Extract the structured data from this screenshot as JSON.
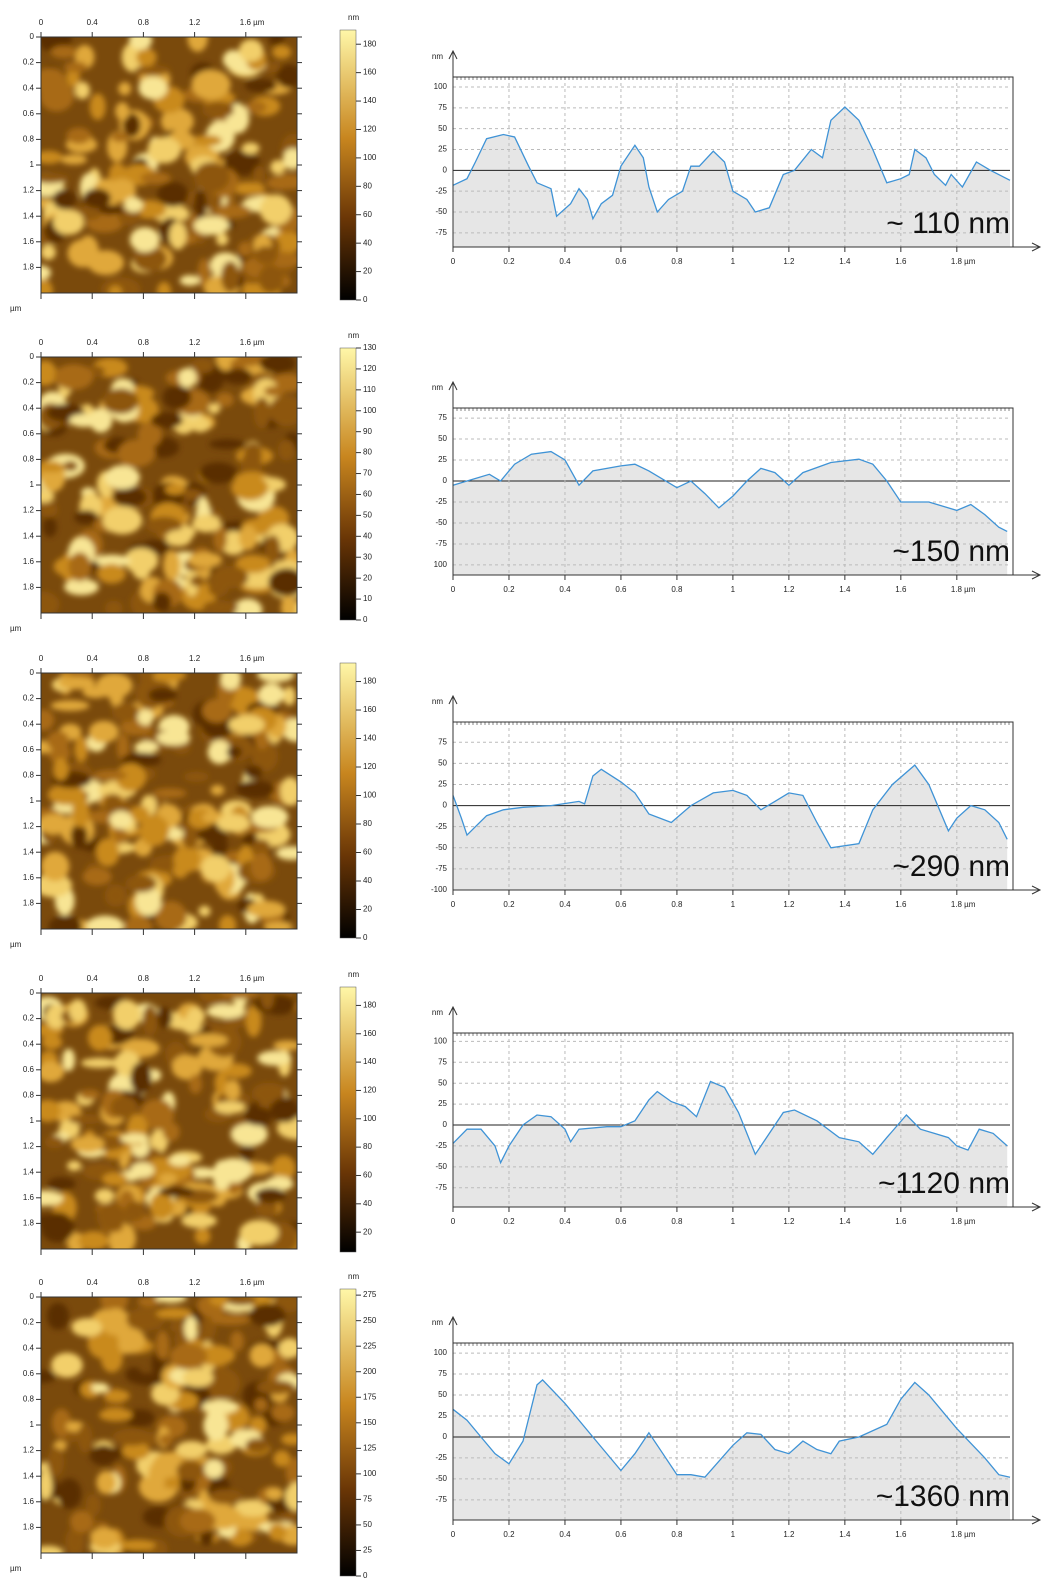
{
  "chart_data": [
    {
      "type": "image",
      "xlim": [
        0,
        2
      ],
      "ylim": [
        0,
        2
      ],
      "xticks": [
        0,
        0.4,
        0.8,
        1.2,
        {
          "value": 1.6,
          "label": "1.6 µm"
        }
      ],
      "yticks": [
        0,
        0.2,
        0.4,
        0.6,
        0.8,
        1,
        1.2,
        1.4,
        1.6,
        1.8
      ],
      "ylabel": "µm",
      "colorbar": {
        "label": "nm",
        "lim": [
          0,
          190
        ],
        "ticks": [
          0,
          20,
          40,
          60,
          80,
          100,
          120,
          140,
          160,
          180
        ]
      }
    },
    {
      "type": "line",
      "xlim": [
        0,
        1.99
      ],
      "ylim": [
        -92,
        112
      ],
      "xticks": [
        0,
        0.2,
        0.4,
        0.6,
        0.8,
        1,
        1.2,
        1.4,
        1.6,
        {
          "value": 1.8,
          "label": "1.8 µm"
        }
      ],
      "yticks": [
        100,
        75,
        50,
        25,
        0,
        -25,
        -50,
        -75
      ],
      "ylabel": "nm",
      "annotation": "~ 110 nm",
      "grid": true,
      "fill": "#e6e6e6",
      "x": [
        0,
        0.05,
        0.08,
        0.12,
        0.18,
        0.22,
        0.27,
        0.3,
        0.35,
        0.37,
        0.42,
        0.45,
        0.48,
        0.5,
        0.53,
        0.57,
        0.6,
        0.65,
        0.68,
        0.7,
        0.73,
        0.77,
        0.82,
        0.85,
        0.88,
        0.93,
        0.97,
        1.0,
        1.05,
        1.08,
        1.13,
        1.18,
        1.22,
        1.28,
        1.32,
        1.35,
        1.4,
        1.45,
        1.5,
        1.55,
        1.6,
        1.63,
        1.65,
        1.69,
        1.72,
        1.76,
        1.78,
        1.82,
        1.87,
        1.92,
        1.99
      ],
      "series": [
        {
          "color": "#3f93d6",
          "values": [
            -18,
            -10,
            10,
            38,
            43,
            40,
            5,
            -15,
            -22,
            -55,
            -40,
            -22,
            -35,
            -58,
            -40,
            -30,
            5,
            30,
            15,
            -20,
            -50,
            -35,
            -25,
            5,
            5,
            23,
            10,
            -25,
            -35,
            -50,
            -45,
            -5,
            0,
            25,
            15,
            60,
            76,
            60,
            25,
            -15,
            -10,
            -5,
            25,
            15,
            -5,
            -18,
            -5,
            -20,
            10,
            0,
            -12
          ]
        }
      ]
    },
    {
      "type": "image",
      "xlim": [
        0,
        2
      ],
      "ylim": [
        0,
        2
      ],
      "xticks": [
        0,
        0.4,
        0.8,
        1.2,
        {
          "value": 1.6,
          "label": "1.6 µm"
        }
      ],
      "yticks": [
        0,
        0.2,
        0.4,
        0.6,
        0.8,
        1,
        1.2,
        1.4,
        1.6,
        1.8
      ],
      "ylabel": "µm",
      "colorbar": {
        "label": "nm",
        "lim": [
          0,
          130
        ],
        "ticks": [
          0,
          10,
          20,
          30,
          40,
          50,
          60,
          70,
          80,
          90,
          100,
          110,
          120,
          130
        ]
      }
    },
    {
      "type": "line",
      "xlim": [
        0,
        1.99
      ],
      "ylim": [
        -112,
        87
      ],
      "xticks": [
        0,
        0.2,
        0.4,
        0.6,
        0.8,
        1,
        1.2,
        1.4,
        1.6,
        {
          "value": 1.8,
          "label": "1.8 µm"
        }
      ],
      "yticks": [
        75,
        50,
        25,
        0,
        -25,
        -50,
        -75,
        {
          "value": -100,
          "label": "100"
        }
      ],
      "ylabel": "nm",
      "annotation": "~150 nm",
      "grid": true,
      "fill": "#e6e6e6",
      "x": [
        0,
        0.05,
        0.13,
        0.17,
        0.22,
        0.28,
        0.35,
        0.4,
        0.45,
        0.5,
        0.6,
        0.65,
        0.7,
        0.8,
        0.85,
        0.9,
        0.95,
        1.0,
        1.05,
        1.1,
        1.15,
        1.2,
        1.25,
        1.35,
        1.45,
        1.5,
        1.55,
        1.6,
        1.7,
        1.8,
        1.85,
        1.9,
        1.95,
        1.98
      ],
      "series": [
        {
          "color": "#3f93d6",
          "values": [
            -5,
            0,
            8,
            0,
            20,
            32,
            35,
            25,
            -5,
            12,
            18,
            20,
            12,
            -8,
            0,
            -15,
            -32,
            -18,
            0,
            15,
            10,
            -5,
            10,
            22,
            26,
            20,
            0,
            -25,
            -25,
            -35,
            -28,
            -40,
            -55,
            -60
          ]
        }
      ]
    },
    {
      "type": "image",
      "xlim": [
        0,
        2
      ],
      "ylim": [
        0,
        2
      ],
      "xticks": [
        0,
        0.4,
        0.8,
        1.2,
        {
          "value": 1.6,
          "label": "1.6 µm"
        }
      ],
      "yticks": [
        0,
        0.2,
        0.4,
        0.6,
        0.8,
        1,
        1.2,
        1.4,
        1.6,
        1.8
      ],
      "ylabel": "µm",
      "colorbar": {
        "lim": [
          0,
          193
        ],
        "ticks": [
          0,
          20,
          40,
          60,
          80,
          100,
          120,
          140,
          160,
          180
        ]
      }
    },
    {
      "type": "line",
      "xlim": [
        0,
        1.99
      ],
      "ylim": [
        -100,
        99
      ],
      "xticks": [
        0,
        0.2,
        0.4,
        0.6,
        0.8,
        1,
        1.2,
        1.4,
        1.6,
        {
          "value": 1.8,
          "label": "1.8 µm"
        }
      ],
      "yticks": [
        75,
        50,
        25,
        0,
        -25,
        -50,
        -75,
        -100
      ],
      "ylabel": "nm",
      "annotation": "~290 nm",
      "grid": true,
      "fill": "#e6e6e6",
      "x": [
        0,
        0.03,
        0.05,
        0.08,
        0.12,
        0.18,
        0.25,
        0.35,
        0.45,
        0.47,
        0.5,
        0.53,
        0.6,
        0.65,
        0.7,
        0.78,
        0.85,
        0.93,
        1.0,
        1.05,
        1.1,
        1.15,
        1.2,
        1.25,
        1.3,
        1.35,
        1.45,
        1.5,
        1.57,
        1.65,
        1.7,
        1.77,
        1.8,
        1.85,
        1.9,
        1.95,
        1.98
      ],
      "series": [
        {
          "color": "#3f93d6",
          "values": [
            12,
            -15,
            -35,
            -25,
            -12,
            -5,
            -2,
            0,
            5,
            2,
            35,
            43,
            28,
            15,
            -10,
            -20,
            0,
            15,
            18,
            12,
            -5,
            5,
            15,
            12,
            -20,
            -50,
            -45,
            -5,
            25,
            48,
            25,
            -30,
            -15,
            0,
            -5,
            -20,
            -40
          ]
        }
      ]
    },
    {
      "type": "image",
      "xlim": [
        0,
        2
      ],
      "ylim": [
        0,
        2
      ],
      "xticks": [
        0,
        0.4,
        0.8,
        1.2,
        {
          "value": 1.6,
          "label": "1.6 µm"
        }
      ],
      "yticks": [
        0,
        0.2,
        0.4,
        0.6,
        0.8,
        1,
        1.2,
        1.4,
        1.6,
        1.8
      ],
      "colorbar": {
        "label": "nm",
        "lim": [
          6,
          193
        ],
        "ticks": [
          20,
          40,
          60,
          80,
          100,
          120,
          140,
          160,
          180
        ]
      }
    },
    {
      "type": "line",
      "xlim": [
        0,
        1.99
      ],
      "ylim": [
        -98,
        110
      ],
      "xticks": [
        0,
        0.2,
        0.4,
        0.6,
        0.8,
        1,
        1.2,
        1.4,
        1.6,
        {
          "value": 1.8,
          "label": "1.8 µm"
        }
      ],
      "yticks": [
        100,
        75,
        50,
        25,
        0,
        -25,
        -50,
        -75
      ],
      "ylabel": "nm",
      "annotation": "~1120 nm",
      "grid": true,
      "fill": "#e6e6e6",
      "x": [
        0,
        0.05,
        0.1,
        0.15,
        0.17,
        0.2,
        0.25,
        0.3,
        0.35,
        0.4,
        0.42,
        0.45,
        0.55,
        0.6,
        0.65,
        0.7,
        0.73,
        0.78,
        0.83,
        0.87,
        0.92,
        0.97,
        1.02,
        1.08,
        1.12,
        1.18,
        1.22,
        1.3,
        1.38,
        1.45,
        1.5,
        1.55,
        1.62,
        1.67,
        1.72,
        1.77,
        1.8,
        1.84,
        1.88,
        1.93,
        1.98
      ],
      "series": [
        {
          "color": "#3f93d6",
          "values": [
            -22,
            -5,
            -5,
            -25,
            -45,
            -25,
            0,
            12,
            10,
            -5,
            -20,
            -5,
            -2,
            -2,
            5,
            30,
            40,
            28,
            22,
            10,
            52,
            45,
            15,
            -35,
            -15,
            15,
            18,
            5,
            -15,
            -20,
            -35,
            -15,
            12,
            -5,
            -10,
            -15,
            -25,
            -30,
            -5,
            -10,
            -25
          ]
        }
      ]
    },
    {
      "type": "image",
      "xlim": [
        0,
        2
      ],
      "ylim": [
        0,
        2
      ],
      "xticks": [
        0,
        0.4,
        0.8,
        1.2,
        {
          "value": 1.6,
          "label": "1.6 µm"
        }
      ],
      "yticks": [
        0,
        0.2,
        0.4,
        0.6,
        0.8,
        1,
        1.2,
        1.4,
        1.6,
        1.8
      ],
      "ylabel": "µm",
      "colorbar": {
        "label": "nm",
        "lim": [
          0,
          281
        ],
        "ticks": [
          0,
          25,
          50,
          75,
          100,
          125,
          150,
          175,
          200,
          225,
          250,
          275
        ]
      }
    },
    {
      "type": "line",
      "xlim": [
        0,
        1.99
      ],
      "ylim": [
        -99,
        112
      ],
      "xticks": [
        0,
        0.2,
        0.4,
        0.6,
        0.8,
        1,
        1.2,
        1.4,
        1.6,
        {
          "value": 1.8,
          "label": "1.8 µm"
        }
      ],
      "yticks": [
        100,
        75,
        50,
        25,
        0,
        -25,
        -50,
        -75
      ],
      "ylabel": "nm",
      "annotation": "~1360 nm",
      "grid": true,
      "fill": "#e6e6e6",
      "x": [
        0,
        0.05,
        0.1,
        0.15,
        0.2,
        0.25,
        0.3,
        0.32,
        0.4,
        0.5,
        0.6,
        0.65,
        0.7,
        0.75,
        0.8,
        0.85,
        0.9,
        1.0,
        1.05,
        1.1,
        1.15,
        1.2,
        1.25,
        1.3,
        1.35,
        1.38,
        1.45,
        1.55,
        1.6,
        1.65,
        1.7,
        1.8,
        1.9,
        1.95,
        1.99
      ],
      "series": [
        {
          "color": "#3f93d6",
          "values": [
            33,
            20,
            0,
            -20,
            -32,
            -5,
            62,
            68,
            40,
            0,
            -40,
            -20,
            5,
            -20,
            -45,
            -45,
            -48,
            -10,
            5,
            3,
            -15,
            -20,
            -5,
            -15,
            -20,
            -5,
            0,
            15,
            45,
            65,
            50,
            10,
            -25,
            -45,
            -48
          ]
        }
      ]
    }
  ]
}
